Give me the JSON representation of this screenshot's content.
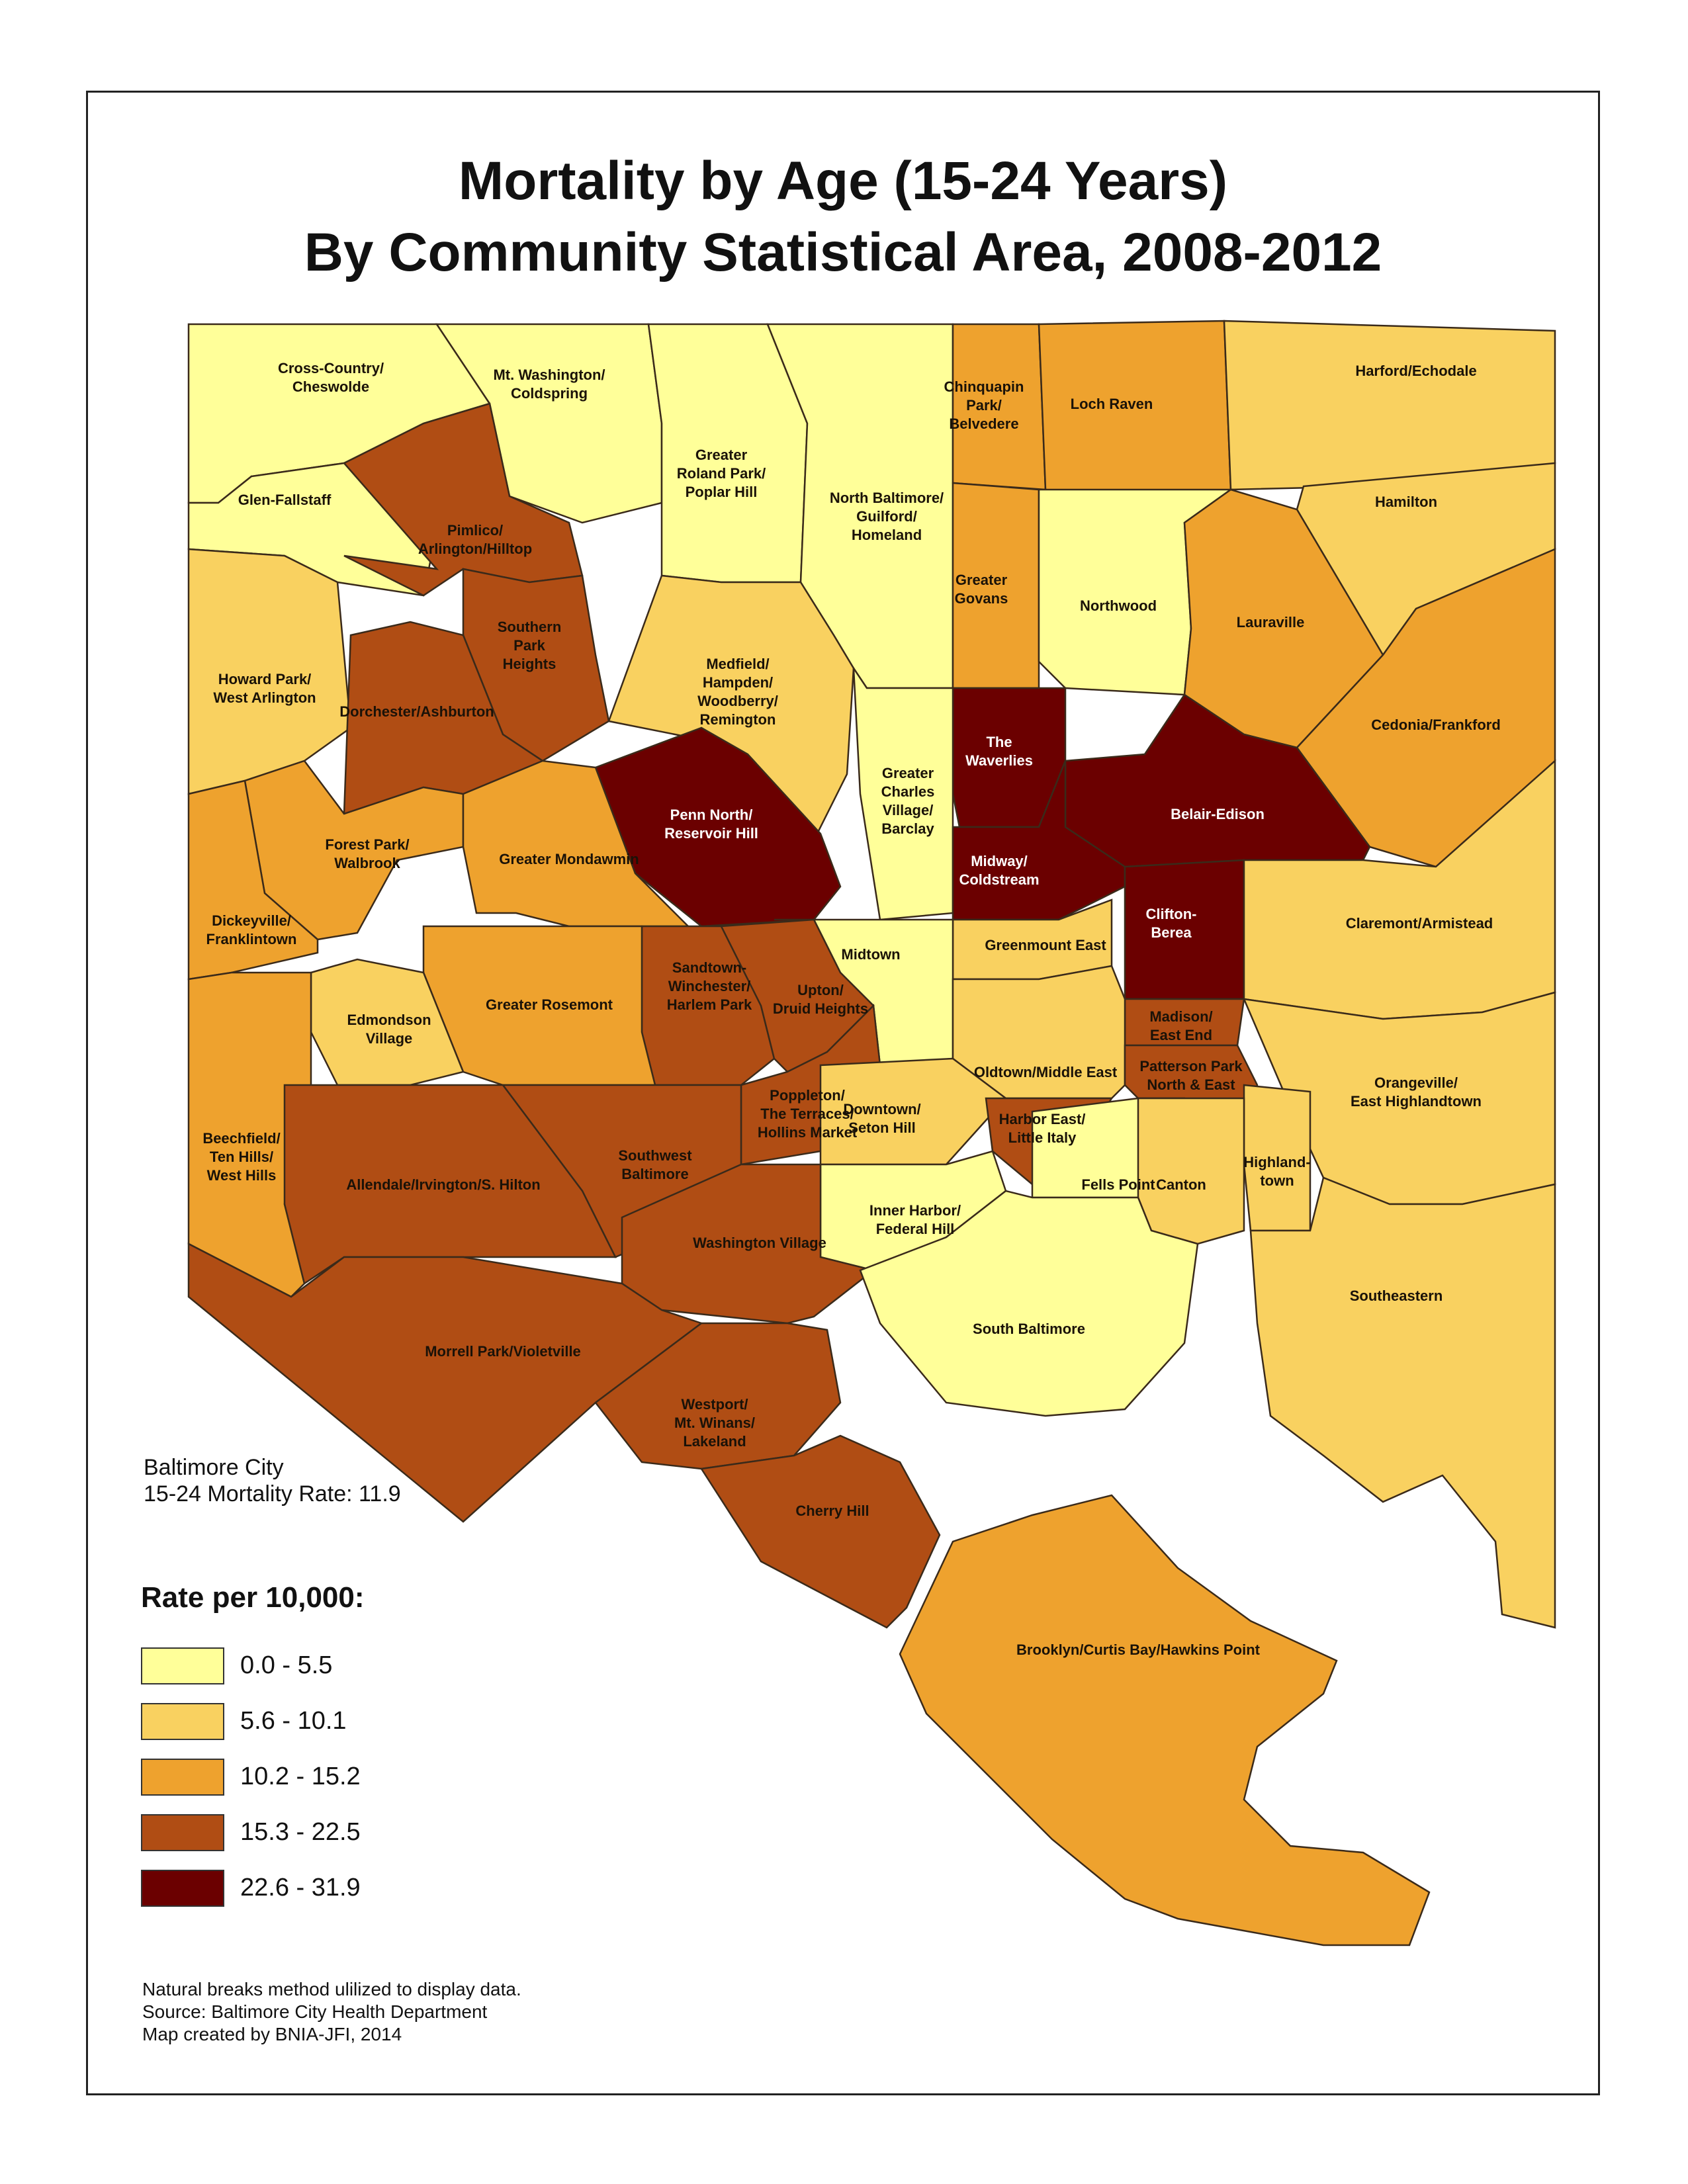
{
  "title": {
    "line1": "Mortality by Age (15-24 Years)",
    "line2": "By Community Statistical Area, 2008-2012"
  },
  "city_summary": {
    "name": "Baltimore City",
    "rate_text": "15-24 Mortality Rate: 11.9"
  },
  "legend": {
    "title": "Rate per 10,000:",
    "classes": [
      {
        "range": "0.0 - 5.5",
        "color": "#ffff99"
      },
      {
        "range": "5.6 - 10.1",
        "color": "#f9d160"
      },
      {
        "range": "10.2 - 15.2",
        "color": "#eea22e"
      },
      {
        "range": "15.3 - 22.5",
        "color": "#b04d14"
      },
      {
        "range": "22.6 - 31.9",
        "color": "#6b0000"
      }
    ]
  },
  "notes": [
    "Natural breaks method ulilized to display data.",
    "Source: Baltimore City Health Department",
    "Map created by BNIA-JFI, 2014"
  ],
  "areas": [
    {
      "name": "Cross-Country/\nCheswolde",
      "class": 0
    },
    {
      "name": "Mt. Washington/\nColdspring",
      "class": 0
    },
    {
      "name": "Greater\nRoland Park/\nPoplar Hill",
      "class": 0
    },
    {
      "name": "North Baltimore/\nGuilford/\nHomeland",
      "class": 0
    },
    {
      "name": "Chinquapin\nPark/\nBelvedere",
      "class": 2
    },
    {
      "name": "Loch Raven",
      "class": 2
    },
    {
      "name": "Harford/Echodale",
      "class": 1
    },
    {
      "name": "Glen-Fallstaff",
      "class": 0
    },
    {
      "name": "Pimlico/\nArlington/Hilltop",
      "class": 3
    },
    {
      "name": "Hamilton",
      "class": 1
    },
    {
      "name": "Southern\nPark\nHeights",
      "class": 3
    },
    {
      "name": "Greater\nGovans",
      "class": 2
    },
    {
      "name": "Northwood",
      "class": 0
    },
    {
      "name": "Lauraville",
      "class": 2
    },
    {
      "name": "Howard Park/\nWest Arlington",
      "class": 1
    },
    {
      "name": "Medfield/\nHampden/\nWoodberry/\nRemington",
      "class": 1
    },
    {
      "name": "Dorchester/Ashburton",
      "class": 3
    },
    {
      "name": "Cedonia/Frankford",
      "class": 2
    },
    {
      "name": "The\nWaverlies",
      "class": 4
    },
    {
      "name": "Penn North/\nReservoir Hill",
      "class": 4
    },
    {
      "name": "Greater\nCharles\nVillage/\nBarclay",
      "class": 0
    },
    {
      "name": "Belair-Edison",
      "class": 4
    },
    {
      "name": "Forest Park/\nWalbrook",
      "class": 2
    },
    {
      "name": "Greater Mondawmin",
      "class": 2
    },
    {
      "name": "Midway/\nColdstream",
      "class": 4
    },
    {
      "name": "Dickeyville/\nFranklintown",
      "class": 2
    },
    {
      "name": "Clifton-\nBerea",
      "class": 4
    },
    {
      "name": "Claremont/Armistead",
      "class": 1
    },
    {
      "name": "Greenmount East",
      "class": 1
    },
    {
      "name": "Midtown",
      "class": 0
    },
    {
      "name": "Sandtown-\nWinchester/\nHarlem Park",
      "class": 3
    },
    {
      "name": "Upton/\nDruid Heights",
      "class": 3
    },
    {
      "name": "Greater Rosemont",
      "class": 2
    },
    {
      "name": "Edmondson\nVillage",
      "class": 1
    },
    {
      "name": "Madison/\nEast End",
      "class": 3
    },
    {
      "name": "Oldtown/Middle East",
      "class": 1
    },
    {
      "name": "Patterson Park\nNorth & East",
      "class": 3
    },
    {
      "name": "Orangeville/\nEast Highlandtown",
      "class": 1
    },
    {
      "name": "Poppleton/\nThe Terraces/\nHollins Market",
      "class": 3
    },
    {
      "name": "Downtown/\nSeton Hill",
      "class": 1
    },
    {
      "name": "Harbor East/\nLittle Italy",
      "class": 3
    },
    {
      "name": "Beechfield/\nTen Hills/\nWest Hills",
      "class": 2
    },
    {
      "name": "Southwest\nBaltimore",
      "class": 3
    },
    {
      "name": "Allendale/Irvington/S. Hilton",
      "class": 3
    },
    {
      "name": "Highland-\ntown",
      "class": 1
    },
    {
      "name": "Fells Point",
      "class": 0
    },
    {
      "name": "Canton",
      "class": 1
    },
    {
      "name": "Inner Harbor/\nFederal Hill",
      "class": 0
    },
    {
      "name": "Washington Village",
      "class": 3
    },
    {
      "name": "Southeastern",
      "class": 1
    },
    {
      "name": "South Baltimore",
      "class": 0
    },
    {
      "name": "Morrell Park/Violetville",
      "class": 3
    },
    {
      "name": "Westport/\nMt. Winans/\nLakeland",
      "class": 3
    },
    {
      "name": "Cherry Hill",
      "class": 3
    },
    {
      "name": "Brooklyn/Curtis Bay/Hawkins Point",
      "class": 2
    }
  ]
}
